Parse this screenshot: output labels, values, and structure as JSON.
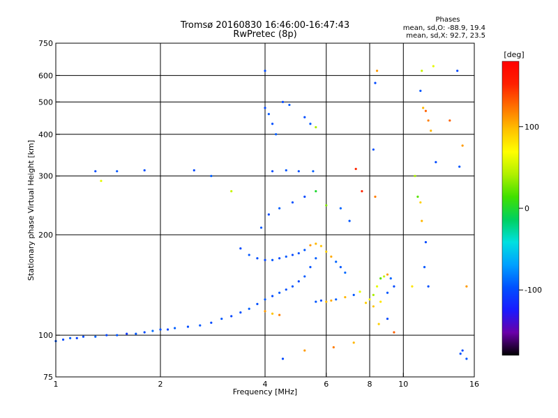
{
  "title_line1": "Tromsø 20160830 16:46:00-16:47:43",
  "title_line2": "RwPretec (8p)",
  "phase_box": {
    "heading": "Phases",
    "o_mode": "mean, sd,O:  -88.9, 19.4",
    "x_mode": "mean, sd,X:  92.7, 23.5"
  },
  "colorbar": {
    "unit": "[deg]",
    "range": [
      -180,
      180
    ],
    "tick_labels": [
      "100",
      "0",
      "-100"
    ],
    "tick_values": [
      100,
      0,
      -100
    ],
    "colors": [
      "#000000",
      "#6a00a8",
      "#1a1aff",
      "#0050ff",
      "#00a0ff",
      "#00e0e0",
      "#00d060",
      "#40e000",
      "#b0f000",
      "#ffff00",
      "#ffc000",
      "#ff7000",
      "#ff2000",
      "#ff0000"
    ]
  },
  "chart_data": {
    "type": "scatter",
    "xlabel": "Frequency [MHz]",
    "ylabel": "Stationary phase Virtual Height [km]",
    "x_scale": "log",
    "y_scale": "log",
    "xlim": [
      1,
      16
    ],
    "ylim": [
      75,
      750
    ],
    "x_ticks": [
      1,
      2,
      4,
      6,
      8,
      10,
      16
    ],
    "x_tick_labels": [
      "1",
      "2",
      "4",
      "6",
      "8",
      "10",
      "16"
    ],
    "y_ticks": [
      75,
      100,
      200,
      300,
      400,
      500,
      600,
      750
    ],
    "y_tick_labels": [
      "75",
      "100",
      "200",
      "300",
      "400",
      "500",
      "600",
      "750"
    ],
    "grid": true,
    "series": [
      {
        "values": [
          [
            1.0,
            96,
            -95
          ],
          [
            1.05,
            97,
            -100
          ],
          [
            1.1,
            98,
            -92
          ],
          [
            1.15,
            98,
            -105
          ],
          [
            1.2,
            99,
            -98
          ],
          [
            1.3,
            99,
            -90
          ],
          [
            1.4,
            100,
            -102
          ],
          [
            1.5,
            100,
            -96
          ],
          [
            1.6,
            101,
            -110
          ],
          [
            1.7,
            101,
            -95
          ],
          [
            1.8,
            102,
            -100
          ],
          [
            1.9,
            103,
            -88
          ],
          [
            2.0,
            104,
            -97
          ],
          [
            2.1,
            104,
            -103
          ],
          [
            2.2,
            105,
            -92
          ],
          [
            2.4,
            106,
            -99
          ],
          [
            2.6,
            107,
            -95
          ],
          [
            2.8,
            109,
            -100
          ],
          [
            3.0,
            112,
            -94
          ],
          [
            3.2,
            114,
            -102
          ],
          [
            3.4,
            117,
            -97
          ],
          [
            3.6,
            120,
            -92
          ],
          [
            3.8,
            124,
            -98
          ],
          [
            4.0,
            128,
            -95
          ],
          [
            4.2,
            131,
            -100
          ],
          [
            4.4,
            134,
            -93
          ],
          [
            4.6,
            137,
            -98
          ],
          [
            4.8,
            140,
            -96
          ],
          [
            5.0,
            145,
            -101
          ],
          [
            5.2,
            150,
            -94
          ],
          [
            5.4,
            160,
            -97
          ],
          [
            5.6,
            170,
            -92
          ],
          [
            3.4,
            182,
            -100
          ],
          [
            3.6,
            174,
            -95
          ],
          [
            3.8,
            170,
            -98
          ],
          [
            4.0,
            168,
            -102
          ],
          [
            4.2,
            168,
            -96
          ],
          [
            4.4,
            170,
            -99
          ],
          [
            4.6,
            172,
            -94
          ],
          [
            4.8,
            174,
            -101
          ],
          [
            5.0,
            176,
            -97
          ],
          [
            5.2,
            180,
            -95
          ],
          [
            5.4,
            186,
            110
          ],
          [
            5.6,
            188,
            100
          ],
          [
            5.8,
            185,
            95
          ],
          [
            6.0,
            178,
            90
          ],
          [
            6.2,
            172,
            105
          ],
          [
            6.4,
            166,
            -90
          ],
          [
            6.6,
            160,
            -95
          ],
          [
            6.8,
            154,
            -88
          ],
          [
            4.0,
            118,
            110
          ],
          [
            4.2,
            116,
            95
          ],
          [
            4.4,
            115,
            120
          ],
          [
            5.6,
            126,
            -95
          ],
          [
            5.8,
            127,
            -100
          ],
          [
            6.0,
            126,
            98
          ],
          [
            6.2,
            127,
            105
          ],
          [
            6.4,
            128,
            -92
          ],
          [
            6.8,
            130,
            100
          ],
          [
            7.2,
            132,
            -95
          ],
          [
            7.5,
            135,
            60
          ],
          [
            7.8,
            125,
            90
          ],
          [
            8.0,
            128,
            70
          ],
          [
            8.2,
            132,
            40
          ],
          [
            8.4,
            140,
            60
          ],
          [
            8.6,
            148,
            20
          ],
          [
            8.8,
            150,
            50
          ],
          [
            9.0,
            152,
            110
          ],
          [
            9.2,
            148,
            -90
          ],
          [
            9.4,
            140,
            -100
          ],
          [
            9.0,
            134,
            -95
          ],
          [
            8.6,
            126,
            80
          ],
          [
            8.2,
            122,
            95
          ],
          [
            3.9,
            210,
            -95
          ],
          [
            4.1,
            230,
            -100
          ],
          [
            4.4,
            240,
            -92
          ],
          [
            4.8,
            250,
            -98
          ],
          [
            5.2,
            260,
            -101
          ],
          [
            5.6,
            270,
            0
          ],
          [
            6.0,
            245,
            30
          ],
          [
            6.6,
            240,
            -90
          ],
          [
            7.0,
            220,
            -95
          ],
          [
            7.6,
            270,
            150
          ],
          [
            8.3,
            260,
            120
          ],
          [
            1.3,
            310,
            -100
          ],
          [
            1.35,
            290,
            60
          ],
          [
            1.5,
            310,
            -95
          ],
          [
            1.8,
            312,
            -98
          ],
          [
            2.5,
            312,
            -100
          ],
          [
            2.8,
            300,
            -92
          ],
          [
            3.2,
            270,
            50
          ],
          [
            4.2,
            310,
            -100
          ],
          [
            4.6,
            312,
            -95
          ],
          [
            5.0,
            310,
            -98
          ],
          [
            5.5,
            310,
            -92
          ],
          [
            7.3,
            315,
            150
          ],
          [
            4.0,
            480,
            -100
          ],
          [
            4.1,
            460,
            -95
          ],
          [
            4.2,
            430,
            -98
          ],
          [
            4.3,
            400,
            -92
          ],
          [
            4.5,
            500,
            -101
          ],
          [
            4.7,
            490,
            -94
          ],
          [
            5.2,
            450,
            -99
          ],
          [
            5.4,
            430,
            -95
          ],
          [
            5.6,
            420,
            40
          ],
          [
            4.0,
            620,
            -100
          ],
          [
            8.2,
            360,
            -98
          ],
          [
            8.3,
            570,
            -100
          ],
          [
            8.4,
            620,
            110
          ],
          [
            11.2,
            540,
            -95
          ],
          [
            11.4,
            480,
            100
          ],
          [
            11.6,
            470,
            130
          ],
          [
            11.8,
            440,
            120
          ],
          [
            12.0,
            410,
            100
          ],
          [
            13.6,
            440,
            130
          ],
          [
            14.8,
            370,
            110
          ],
          [
            12.4,
            330,
            -100
          ],
          [
            14.5,
            320,
            -95
          ],
          [
            11.3,
            620,
            50
          ],
          [
            12.2,
            640,
            60
          ],
          [
            14.3,
            620,
            -100
          ],
          [
            10.8,
            300,
            40
          ],
          [
            11.0,
            260,
            20
          ],
          [
            11.2,
            250,
            90
          ],
          [
            11.3,
            220,
            100
          ],
          [
            11.6,
            190,
            -100
          ],
          [
            11.5,
            160,
            -95
          ],
          [
            11.8,
            140,
            -98
          ],
          [
            10.6,
            140,
            80
          ],
          [
            15.2,
            140,
            110
          ],
          [
            14.8,
            90,
            -100
          ],
          [
            15.2,
            85,
            -95
          ],
          [
            14.6,
            88,
            -98
          ],
          [
            4.5,
            85,
            -100
          ],
          [
            5.2,
            90,
            110
          ],
          [
            6.3,
            92,
            120
          ],
          [
            7.2,
            95,
            100
          ],
          [
            8.5,
            108,
            90
          ],
          [
            9.0,
            112,
            -100
          ],
          [
            9.4,
            102,
            130
          ]
        ]
      }
    ]
  }
}
